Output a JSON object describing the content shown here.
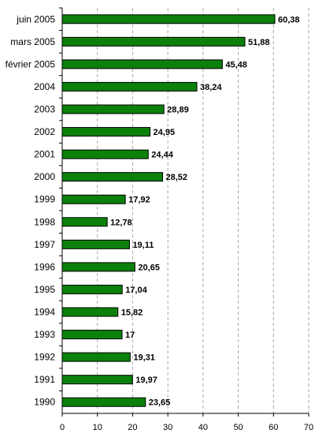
{
  "chart_data": {
    "type": "bar",
    "orientation": "horizontal",
    "categories": [
      "juin 2005",
      "mars 2005",
      "février 2005",
      "2004",
      "2003",
      "2002",
      "2001",
      "2000",
      "1999",
      "1998",
      "1997",
      "1996",
      "1995",
      "1994",
      "1993",
      "1992",
      "1991",
      "1990"
    ],
    "values": [
      60.38,
      51.88,
      45.48,
      38.24,
      28.89,
      24.95,
      24.44,
      28.52,
      17.92,
      12.78,
      19.11,
      20.65,
      17.04,
      15.82,
      17,
      19.31,
      19.97,
      23.65
    ],
    "value_labels": [
      "60,38",
      "51,88",
      "45,48",
      "38,24",
      "28,89",
      "24,95",
      "24,44",
      "28,52",
      "17,92",
      "12,78",
      "19,11",
      "20,65",
      "17,04",
      "15,82",
      "17",
      "19,31",
      "19,97",
      "23,65"
    ],
    "xlim": [
      0,
      70
    ],
    "xticks": [
      "0",
      "10",
      "20",
      "30",
      "40",
      "50",
      "60",
      "70"
    ],
    "title": "",
    "xlabel": "",
    "ylabel": "",
    "grid": "vertical dashed",
    "legend": "none",
    "colors": {
      "bar_fill": "#0b800b",
      "bar_stroke": "#000000",
      "grid": "#a8a8a8",
      "axis": "#000000"
    }
  }
}
